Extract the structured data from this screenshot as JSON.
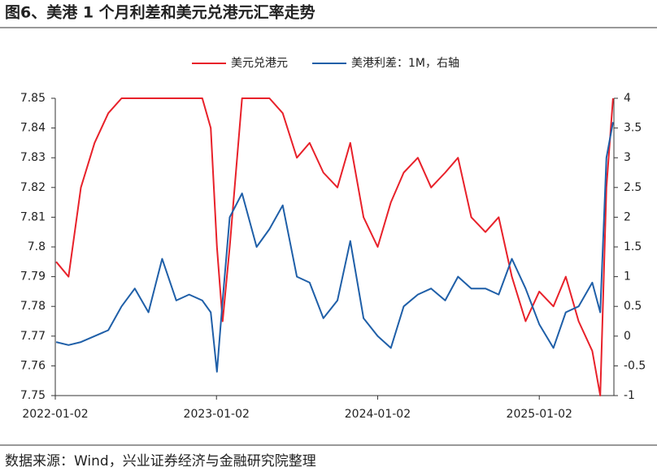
{
  "chart_data": {
    "type": "line",
    "title": "图6、美港 1 个月利差和美元兑港元汇率走势",
    "source": "数据来源：Wind，兴业证券经济与金融研究院整理",
    "x": [
      "2022-01-04",
      "2022-02-01",
      "2022-03-01",
      "2022-04-01",
      "2022-05-02",
      "2022-06-01",
      "2022-07-01",
      "2022-08-01",
      "2022-09-01",
      "2022-10-03",
      "2022-11-01",
      "2022-12-01",
      "2022-12-20",
      "2023-01-03",
      "2023-01-16",
      "2023-02-01",
      "2023-03-01",
      "2023-04-03",
      "2023-05-02",
      "2023-06-01",
      "2023-07-03",
      "2023-08-01",
      "2023-09-01",
      "2023-10-03",
      "2023-11-01",
      "2023-12-01",
      "2024-01-02",
      "2024-02-01",
      "2024-03-01",
      "2024-04-02",
      "2024-05-02",
      "2024-06-03",
      "2024-07-02",
      "2024-08-01",
      "2024-09-02",
      "2024-10-02",
      "2024-11-01",
      "2024-12-02",
      "2025-01-02",
      "2025-02-03",
      "2025-03-03",
      "2025-04-01",
      "2025-05-02",
      "2025-05-20",
      "2025-06-03",
      "2025-06-18"
    ],
    "series": [
      {
        "name": "美元兑港元",
        "color": "#e8212a",
        "values": [
          7.795,
          7.79,
          7.82,
          7.835,
          7.845,
          7.85,
          7.85,
          7.85,
          7.85,
          7.85,
          7.85,
          7.85,
          7.84,
          7.8,
          7.775,
          7.8,
          7.85,
          7.85,
          7.85,
          7.845,
          7.83,
          7.835,
          7.825,
          7.82,
          7.835,
          7.81,
          7.8,
          7.815,
          7.825,
          7.83,
          7.82,
          7.825,
          7.83,
          7.81,
          7.805,
          7.81,
          7.79,
          7.775,
          7.785,
          7.78,
          7.79,
          7.775,
          7.765,
          7.75,
          7.82,
          7.85
        ]
      },
      {
        "name": "美港利差：1M，右轴",
        "color": "#1f5fa8",
        "axis": "y2",
        "values": [
          -0.1,
          -0.15,
          -0.1,
          0,
          0.1,
          0.5,
          0.8,
          0.4,
          1.3,
          0.6,
          0.7,
          0.6,
          0.4,
          -0.6,
          0.6,
          2.0,
          2.4,
          1.5,
          1.8,
          2.2,
          1.0,
          0.9,
          0.3,
          0.6,
          1.6,
          0.3,
          0.0,
          -0.2,
          0.5,
          0.7,
          0.8,
          0.6,
          1.0,
          0.8,
          0.8,
          0.7,
          1.3,
          0.8,
          0.2,
          -0.2,
          0.4,
          0.5,
          0.9,
          0.4,
          3.0,
          3.6
        ]
      }
    ],
    "xlim": [
      "2022-01-02",
      "2025-06-20"
    ],
    "xticks": [
      "2022-01-02",
      "2023-01-02",
      "2024-01-02",
      "2025-01-02"
    ],
    "ylim": [
      7.75,
      7.85
    ],
    "yticks": [
      7.75,
      7.76,
      7.77,
      7.78,
      7.79,
      7.8,
      7.81,
      7.82,
      7.83,
      7.84,
      7.85
    ],
    "y2lim": [
      -1,
      4
    ],
    "y2ticks": [
      -1,
      -0.5,
      0,
      0.5,
      1,
      1.5,
      2,
      2.5,
      3,
      3.5,
      4
    ],
    "legend": "top"
  }
}
